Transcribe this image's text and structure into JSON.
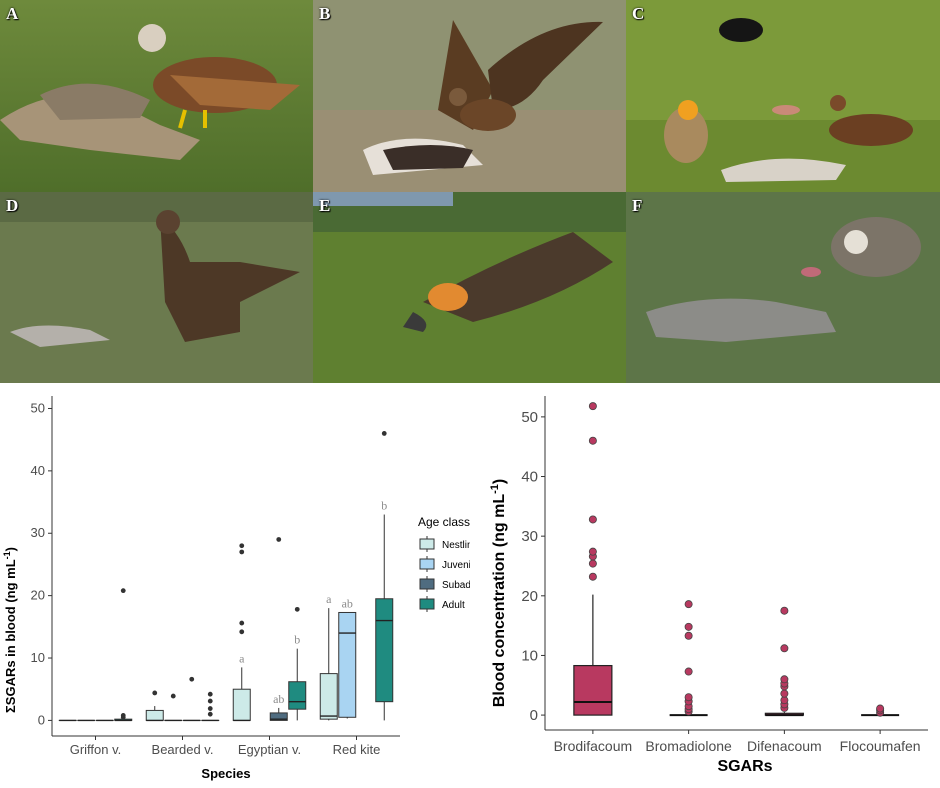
{
  "panels": [
    {
      "label": "A",
      "subject": "red kite at carcass"
    },
    {
      "label": "B",
      "subject": "kite with spread wings at carcass"
    },
    {
      "label": "C",
      "subject": "Egyptian vulture, kite and raven at carcass"
    },
    {
      "label": "D",
      "subject": "large eagle near carcass"
    },
    {
      "label": "E",
      "subject": "bearded vulture feeding"
    },
    {
      "label": "F",
      "subject": "griffon vultures at fox carcass"
    }
  ],
  "colors": {
    "nestling": "#cdeae8",
    "juvenile": "#a9d4f2",
    "subadult": "#4f6c80",
    "adult": "#1f8b80",
    "sgar": "#b83960",
    "axis": "#333333",
    "outlier": "#333333",
    "letter": "#8c8c8c"
  },
  "chart_data": [
    {
      "type": "box",
      "title": "",
      "xlabel": "Species",
      "ylabel": "ΣSGARs in blood (ng mL",
      "ylabel_sup": "-1",
      "ylabel_close": ")",
      "ylim": [
        -2.5,
        52
      ],
      "yticks": [
        0,
        10,
        20,
        30,
        40,
        50
      ],
      "grid": false,
      "legend": {
        "title": "Age class",
        "position": "right",
        "entries": [
          "Nestling",
          "Juvenile",
          "Subadult",
          "Adult"
        ]
      },
      "categories": [
        "Griffon v.",
        "Bearded v.",
        "Egyptian v.",
        "Red kite"
      ],
      "series": [
        {
          "name": "Nestling",
          "boxes": [
            {
              "min": 0,
              "q1": 0,
              "median": 0,
              "q3": 0,
              "max": 0,
              "outliers": []
            },
            {
              "min": 0,
              "q1": 0,
              "median": 0,
              "q3": 1.6,
              "max": 2.3,
              "outliers": [
                4.4
              ]
            },
            {
              "min": 0,
              "q1": 0,
              "median": 0,
              "q3": 5.0,
              "max": 8.5,
              "outliers": [
                14.2,
                15.6,
                27.0,
                28.0
              ],
              "letter": "a"
            },
            {
              "min": 0,
              "q1": 0.2,
              "median": 0.7,
              "q3": 7.5,
              "max": 18.0,
              "outliers": [],
              "letter": "a"
            }
          ]
        },
        {
          "name": "Juvenile",
          "boxes": [
            {
              "min": 0,
              "q1": 0,
              "median": 0,
              "q3": 0,
              "max": 0,
              "outliers": []
            },
            {
              "min": 0,
              "q1": 0,
              "median": 0,
              "q3": 0,
              "max": 0,
              "outliers": [
                3.9
              ]
            },
            null,
            {
              "min": 0.3,
              "q1": 0.5,
              "median": 14.0,
              "q3": 17.3,
              "max": 17.3,
              "outliers": [],
              "letter": "ab"
            }
          ]
        },
        {
          "name": "Subadult",
          "boxes": [
            {
              "min": 0,
              "q1": 0,
              "median": 0,
              "q3": 0,
              "max": 0,
              "outliers": []
            },
            {
              "min": 0,
              "q1": 0,
              "median": 0,
              "q3": 0,
              "max": 0,
              "outliers": [
                6.6
              ]
            },
            {
              "min": 0,
              "q1": 0,
              "median": 0.2,
              "q3": 1.2,
              "max": 2.0,
              "outliers": [
                29.0
              ],
              "letter": "ab"
            },
            null
          ]
        },
        {
          "name": "Adult",
          "boxes": [
            {
              "min": 0,
              "q1": 0,
              "median": 0,
              "q3": 0.2,
              "max": 0.2,
              "outliers": [
                0.5,
                0.8,
                20.8
              ]
            },
            {
              "min": 0,
              "q1": 0,
              "median": 0,
              "q3": 0,
              "max": 0,
              "outliers": [
                1.0,
                1.9,
                3.1,
                4.2
              ]
            },
            {
              "min": 0,
              "q1": 1.8,
              "median": 3.0,
              "q3": 6.2,
              "max": 11.5,
              "outliers": [
                17.8
              ],
              "letter": "b"
            },
            {
              "min": 0,
              "q1": 3.0,
              "median": 16.0,
              "q3": 19.5,
              "max": 33.0,
              "outliers": [
                46.0
              ],
              "letter": "b"
            }
          ]
        }
      ]
    },
    {
      "type": "box",
      "title": "",
      "xlabel": "SGARs",
      "ylabel": "Blood concentration (ng mL",
      "ylabel_sup": "-1",
      "ylabel_close": ")",
      "ylim": [
        -2.5,
        53.5
      ],
      "yticks": [
        0,
        10,
        20,
        30,
        40,
        50
      ],
      "grid": false,
      "categories": [
        "Brodifacoum",
        "Bromadiolone",
        "Difenacoum",
        "Flocoumafen"
      ],
      "boxes": [
        {
          "min": 0,
          "q1": 0,
          "median": 2.2,
          "q3": 8.3,
          "max": 20.2,
          "outliers": [
            23.2,
            25.4,
            26.6,
            27.4,
            32.8,
            46.0,
            51.8
          ]
        },
        {
          "min": 0,
          "q1": 0,
          "median": 0,
          "q3": 0,
          "max": 0,
          "outliers": [
            0.6,
            1.0,
            1.5,
            2.3,
            3.0,
            7.3,
            13.3,
            14.8,
            18.6
          ]
        },
        {
          "min": 0,
          "q1": 0,
          "median": 0,
          "q3": 0.3,
          "max": 0.5,
          "outliers": [
            1.2,
            1.8,
            2.5,
            3.6,
            4.8,
            5.3,
            6.0,
            11.2,
            17.5
          ]
        },
        {
          "min": 0,
          "q1": 0,
          "median": 0,
          "q3": 0,
          "max": 0,
          "outliers": [
            0.4,
            0.8,
            1.1
          ]
        }
      ]
    }
  ]
}
